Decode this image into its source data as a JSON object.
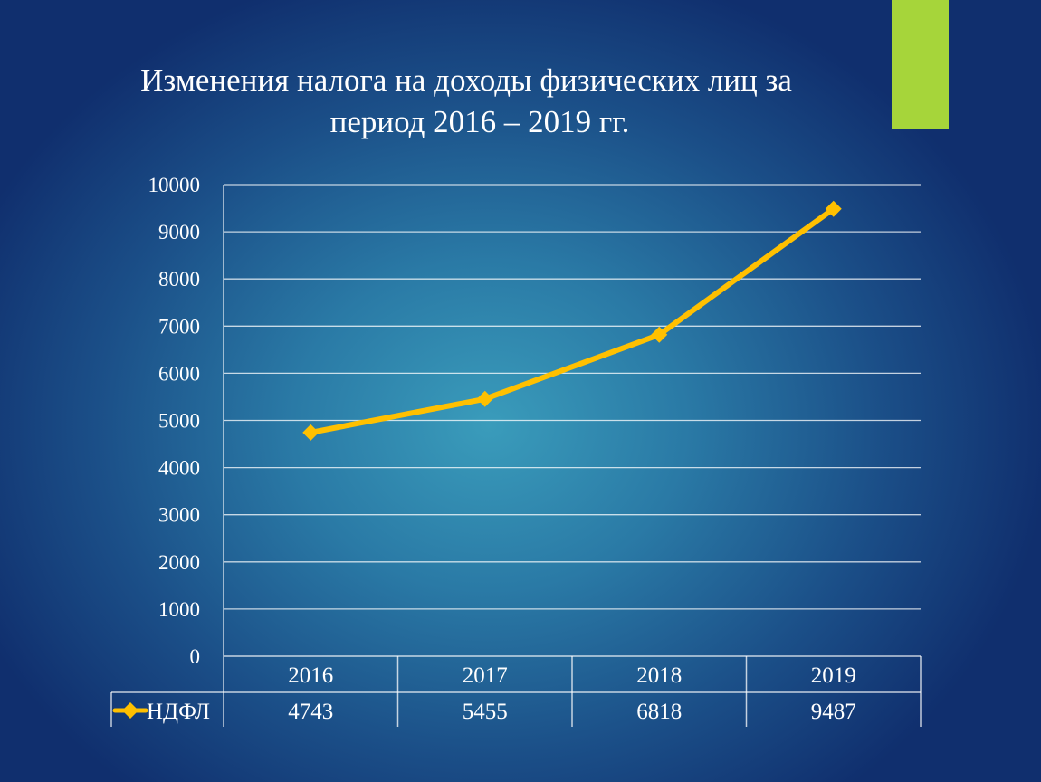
{
  "slide": {
    "title_line1": "Изменения налога на доходы физических лиц за",
    "title_line2": "период  2016 – 2019 гг.",
    "accent_color": "#a6d53a"
  },
  "chart_data": {
    "type": "line",
    "categories": [
      "2016",
      "2017",
      "2018",
      "2019"
    ],
    "series": [
      {
        "name": "НДФЛ",
        "values": [
          4743,
          5455,
          6818,
          9487
        ],
        "color": "#ffc000",
        "marker": "diamond"
      }
    ],
    "yticks": [
      "0",
      "1000",
      "2000",
      "3000",
      "4000",
      "5000",
      "6000",
      "7000",
      "8000",
      "9000",
      "10000"
    ],
    "ylim": [
      0,
      10000
    ],
    "grid": true,
    "data_table": true,
    "legend": "in data table"
  }
}
